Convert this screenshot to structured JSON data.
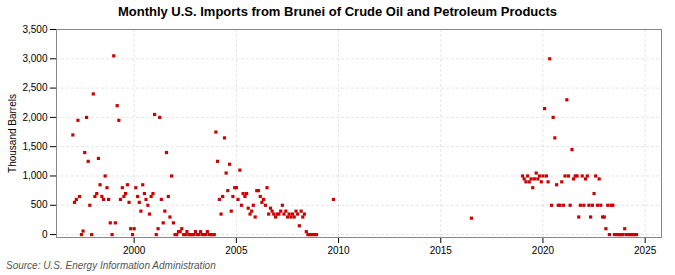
{
  "chart_data": {
    "type": "scatter",
    "title": "Monthly U.S. Imports from Brunei of Crude Oil and Petroleum Products",
    "ylabel": "Thousand Barrels",
    "source": "Source: U.S. Energy Information Administration",
    "color": "#cc0000",
    "marker": "square",
    "grid": true,
    "xlim": [
      1996.2,
      2025.8
    ],
    "xticks": [
      2000,
      2005,
      2010,
      2015,
      2020,
      2025
    ],
    "ylim": [
      -50,
      3500
    ],
    "yticks": [
      0,
      500,
      {
        "value": 1000,
        "label": "1,000"
      },
      {
        "value": 1500,
        "label": "1,500"
      },
      {
        "value": 2000,
        "label": "2,000"
      },
      {
        "value": 2500,
        "label": "2,500"
      },
      {
        "value": 3000,
        "label": "3,000"
      },
      {
        "value": 3500,
        "label": "3,500"
      }
    ],
    "x": [
      1997.0,
      1997.08,
      1997.17,
      1997.25,
      1997.33,
      1997.42,
      1997.5,
      1997.58,
      1997.67,
      1997.75,
      1997.83,
      1997.92,
      1998.0,
      1998.08,
      1998.17,
      1998.25,
      1998.33,
      1998.42,
      1998.5,
      1998.58,
      1998.67,
      1998.75,
      1998.83,
      1998.92,
      1999.0,
      1999.08,
      1999.17,
      1999.25,
      1999.33,
      1999.42,
      1999.5,
      1999.58,
      1999.67,
      1999.75,
      1999.83,
      1999.92,
      2000.0,
      2000.08,
      2000.17,
      2000.25,
      2000.33,
      2000.42,
      2000.5,
      2000.58,
      2000.67,
      2000.75,
      2000.83,
      2000.92,
      2001.0,
      2001.08,
      2001.17,
      2001.25,
      2001.33,
      2001.42,
      2001.5,
      2001.58,
      2001.67,
      2001.75,
      2001.83,
      2001.92,
      2002.0,
      2002.08,
      2002.17,
      2002.25,
      2002.33,
      2002.42,
      2002.5,
      2002.58,
      2002.67,
      2002.75,
      2002.83,
      2002.92,
      2003.0,
      2003.08,
      2003.17,
      2003.25,
      2003.33,
      2003.42,
      2003.5,
      2003.58,
      2003.67,
      2003.75,
      2003.83,
      2003.92,
      2004.0,
      2004.08,
      2004.17,
      2004.25,
      2004.33,
      2004.42,
      2004.5,
      2004.58,
      2004.67,
      2004.75,
      2004.83,
      2004.92,
      2005.0,
      2005.08,
      2005.17,
      2005.25,
      2005.33,
      2005.42,
      2005.5,
      2005.58,
      2005.67,
      2005.75,
      2005.83,
      2005.92,
      2006.0,
      2006.08,
      2006.17,
      2006.25,
      2006.33,
      2006.42,
      2006.5,
      2006.58,
      2006.67,
      2006.75,
      2006.83,
      2006.92,
      2007.0,
      2007.08,
      2007.17,
      2007.25,
      2007.33,
      2007.42,
      2007.5,
      2007.58,
      2007.67,
      2007.75,
      2007.83,
      2007.92,
      2008.0,
      2008.08,
      2008.17,
      2008.25,
      2008.33,
      2008.42,
      2008.5,
      2008.58,
      2008.67,
      2008.75,
      2008.83,
      2008.92,
      2009.75,
      2016.5,
      2019.0,
      2019.08,
      2019.17,
      2019.25,
      2019.33,
      2019.42,
      2019.5,
      2019.58,
      2019.67,
      2019.75,
      2019.83,
      2019.92,
      2020.0,
      2020.08,
      2020.17,
      2020.25,
      2020.33,
      2020.42,
      2020.5,
      2020.58,
      2020.67,
      2020.75,
      2020.83,
      2020.92,
      2021.0,
      2021.08,
      2021.17,
      2021.25,
      2021.33,
      2021.42,
      2021.5,
      2021.58,
      2021.67,
      2021.75,
      2021.83,
      2021.92,
      2022.0,
      2022.08,
      2022.17,
      2022.25,
      2022.33,
      2022.42,
      2022.5,
      2022.58,
      2022.67,
      2022.75,
      2022.83,
      2022.92,
      2023.0,
      2023.08,
      2023.17,
      2023.25,
      2023.33,
      2023.42,
      2023.5,
      2023.58,
      2023.67,
      2023.75,
      2023.83,
      2023.92,
      2024.0,
      2024.08,
      2024.17,
      2024.25,
      2024.33,
      2024.42,
      2024.5,
      2024.58
    ],
    "values": [
      1700,
      550,
      600,
      1950,
      650,
      0,
      60,
      1400,
      2000,
      1250,
      500,
      0,
      2400,
      650,
      700,
      1300,
      850,
      650,
      600,
      1000,
      800,
      600,
      200,
      0,
      3050,
      200,
      2200,
      1950,
      600,
      800,
      650,
      700,
      850,
      550,
      100,
      0,
      100,
      800,
      650,
      550,
      400,
      850,
      700,
      600,
      500,
      350,
      650,
      700,
      2050,
      0,
      100,
      2000,
      600,
      200,
      400,
      1400,
      650,
      300,
      1000,
      200,
      0,
      0,
      50,
      50,
      100,
      0,
      0,
      50,
      0,
      0,
      0,
      0,
      50,
      0,
      0,
      50,
      0,
      0,
      0,
      50,
      0,
      0,
      0,
      0,
      1750,
      1250,
      600,
      350,
      650,
      1650,
      1050,
      750,
      1200,
      400,
      650,
      800,
      800,
      600,
      1100,
      500,
      700,
      650,
      700,
      450,
      350,
      400,
      500,
      300,
      750,
      750,
      650,
      550,
      600,
      500,
      800,
      350,
      450,
      400,
      350,
      300,
      350,
      350,
      400,
      500,
      350,
      400,
      300,
      350,
      300,
      350,
      300,
      400,
      350,
      150,
      400,
      300,
      350,
      50,
      0,
      0,
      0,
      0,
      0,
      0,
      600,
      280,
      1000,
      950,
      900,
      1000,
      900,
      950,
      800,
      950,
      1050,
      950,
      1000,
      900,
      1000,
      2150,
      1000,
      900,
      3000,
      500,
      2000,
      1650,
      850,
      500,
      500,
      900,
      500,
      1000,
      2300,
      1000,
      500,
      1450,
      950,
      1000,
      1000,
      300,
      500,
      1000,
      500,
      950,
      1000,
      500,
      300,
      500,
      700,
      1000,
      500,
      950,
      500,
      300,
      300,
      100,
      500,
      0,
      500,
      500,
      0,
      0,
      0,
      0,
      0,
      0,
      100,
      0,
      0,
      0,
      0,
      0,
      0,
      0
    ]
  }
}
